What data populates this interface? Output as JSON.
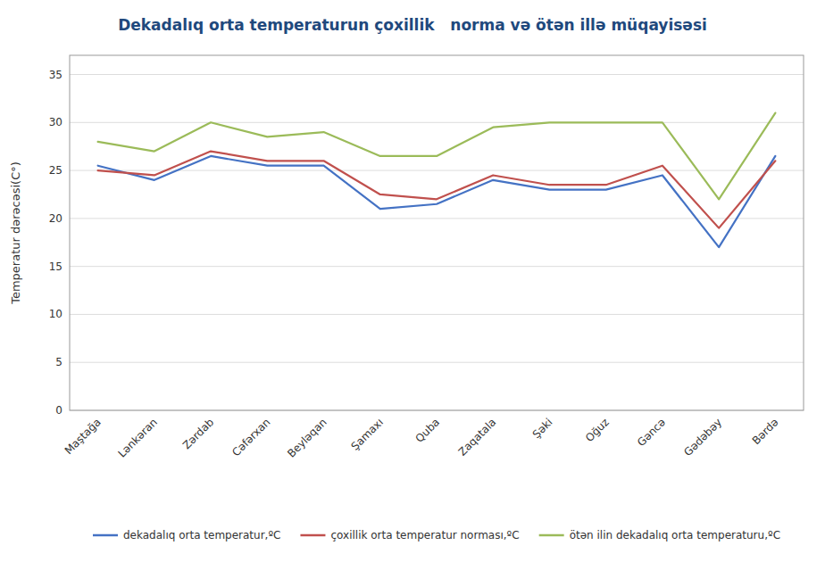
{
  "chart_data": {
    "type": "line",
    "title": "Dekadalıq orta temperaturun çoxillik   norma və ötən illə müqayisəsi",
    "y_label": "Temperatur dərəcəsi(C°)",
    "categories": [
      "Maştağa",
      "Lənkəran",
      "Zərdab",
      "Cəfərxan",
      "Beyləqan",
      "Şamaxı",
      "Quba",
      "Zaqatala",
      "Şəki",
      "Oğuz",
      "Gəncə",
      "Gədəbəy",
      "Bərdə"
    ],
    "series": [
      {
        "name": "dekadalıq orta temperatur,ºC",
        "color": "#4472C4",
        "values": [
          25.5,
          24.0,
          26.5,
          25.5,
          25.5,
          21.0,
          21.5,
          24.0,
          23.0,
          23.0,
          24.5,
          17.0,
          26.5
        ]
      },
      {
        "name": "çoxillik orta temperatur norması,ºC",
        "color": "#C0504D",
        "values": [
          25.0,
          24.5,
          27.0,
          26.0,
          26.0,
          22.5,
          22.0,
          24.5,
          23.5,
          23.5,
          25.5,
          19.0,
          26.0
        ]
      },
      {
        "name": "ötən ilin dekadalıq orta temperaturu,ºC",
        "color": "#9BBB59",
        "values": [
          28.0,
          27.0,
          30.0,
          28.5,
          29.0,
          26.5,
          26.5,
          29.5,
          30.0,
          30.0,
          30.0,
          22.0,
          31.0
        ]
      }
    ],
    "ylim": [
      0,
      37
    ],
    "yticks": [
      0,
      5,
      10,
      15,
      20,
      25,
      30,
      35
    ],
    "grid": true,
    "legend": "bottom"
  }
}
